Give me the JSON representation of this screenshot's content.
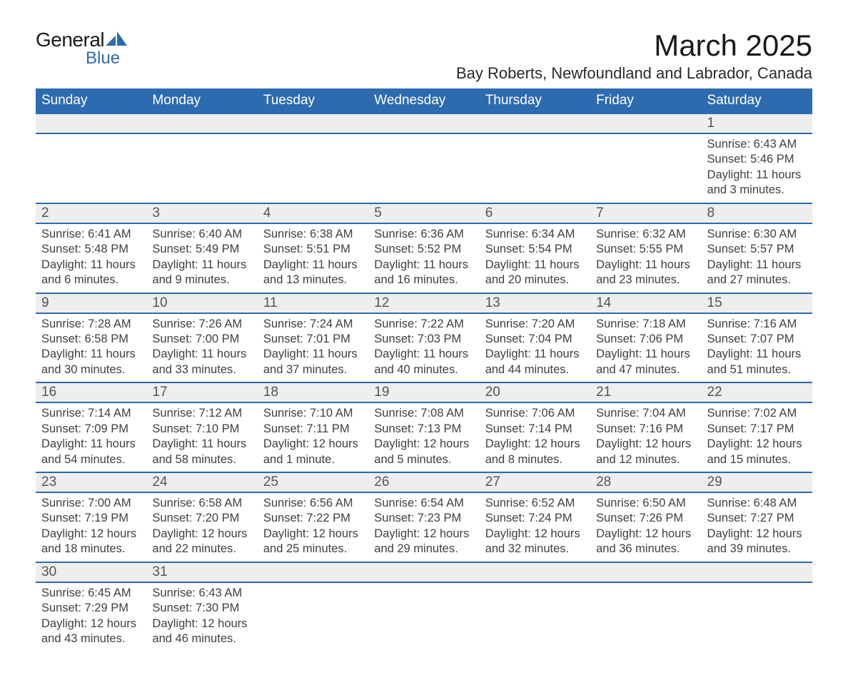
{
  "brand": {
    "name1": "General",
    "name2": "Blue",
    "accent": "#2d6bb0"
  },
  "title": "March 2025",
  "location": "Bay Roberts, Newfoundland and Labrador, Canada",
  "dayHeaders": [
    "Sunday",
    "Monday",
    "Tuesday",
    "Wednesday",
    "Thursday",
    "Friday",
    "Saturday"
  ],
  "colors": {
    "headerBg": "#2d6bb0",
    "headerText": "#ffffff",
    "dayNumBg": "#eeeeee",
    "text": "#404040",
    "pageBg": "#ffffff"
  },
  "fonts": {
    "title_pt": 42,
    "location_pt": 22,
    "header_pt": 19,
    "daynum_pt": 19,
    "body_pt": 16.5
  },
  "weeks": [
    [
      null,
      null,
      null,
      null,
      null,
      null,
      {
        "n": "1",
        "sr": "Sunrise: 6:43 AM",
        "ss": "Sunset: 5:46 PM",
        "d1": "Daylight: 11 hours",
        "d2": "and 3 minutes."
      }
    ],
    [
      {
        "n": "2",
        "sr": "Sunrise: 6:41 AM",
        "ss": "Sunset: 5:48 PM",
        "d1": "Daylight: 11 hours",
        "d2": "and 6 minutes."
      },
      {
        "n": "3",
        "sr": "Sunrise: 6:40 AM",
        "ss": "Sunset: 5:49 PM",
        "d1": "Daylight: 11 hours",
        "d2": "and 9 minutes."
      },
      {
        "n": "4",
        "sr": "Sunrise: 6:38 AM",
        "ss": "Sunset: 5:51 PM",
        "d1": "Daylight: 11 hours",
        "d2": "and 13 minutes."
      },
      {
        "n": "5",
        "sr": "Sunrise: 6:36 AM",
        "ss": "Sunset: 5:52 PM",
        "d1": "Daylight: 11 hours",
        "d2": "and 16 minutes."
      },
      {
        "n": "6",
        "sr": "Sunrise: 6:34 AM",
        "ss": "Sunset: 5:54 PM",
        "d1": "Daylight: 11 hours",
        "d2": "and 20 minutes."
      },
      {
        "n": "7",
        "sr": "Sunrise: 6:32 AM",
        "ss": "Sunset: 5:55 PM",
        "d1": "Daylight: 11 hours",
        "d2": "and 23 minutes."
      },
      {
        "n": "8",
        "sr": "Sunrise: 6:30 AM",
        "ss": "Sunset: 5:57 PM",
        "d1": "Daylight: 11 hours",
        "d2": "and 27 minutes."
      }
    ],
    [
      {
        "n": "9",
        "sr": "Sunrise: 7:28 AM",
        "ss": "Sunset: 6:58 PM",
        "d1": "Daylight: 11 hours",
        "d2": "and 30 minutes."
      },
      {
        "n": "10",
        "sr": "Sunrise: 7:26 AM",
        "ss": "Sunset: 7:00 PM",
        "d1": "Daylight: 11 hours",
        "d2": "and 33 minutes."
      },
      {
        "n": "11",
        "sr": "Sunrise: 7:24 AM",
        "ss": "Sunset: 7:01 PM",
        "d1": "Daylight: 11 hours",
        "d2": "and 37 minutes."
      },
      {
        "n": "12",
        "sr": "Sunrise: 7:22 AM",
        "ss": "Sunset: 7:03 PM",
        "d1": "Daylight: 11 hours",
        "d2": "and 40 minutes."
      },
      {
        "n": "13",
        "sr": "Sunrise: 7:20 AM",
        "ss": "Sunset: 7:04 PM",
        "d1": "Daylight: 11 hours",
        "d2": "and 44 minutes."
      },
      {
        "n": "14",
        "sr": "Sunrise: 7:18 AM",
        "ss": "Sunset: 7:06 PM",
        "d1": "Daylight: 11 hours",
        "d2": "and 47 minutes."
      },
      {
        "n": "15",
        "sr": "Sunrise: 7:16 AM",
        "ss": "Sunset: 7:07 PM",
        "d1": "Daylight: 11 hours",
        "d2": "and 51 minutes."
      }
    ],
    [
      {
        "n": "16",
        "sr": "Sunrise: 7:14 AM",
        "ss": "Sunset: 7:09 PM",
        "d1": "Daylight: 11 hours",
        "d2": "and 54 minutes."
      },
      {
        "n": "17",
        "sr": "Sunrise: 7:12 AM",
        "ss": "Sunset: 7:10 PM",
        "d1": "Daylight: 11 hours",
        "d2": "and 58 minutes."
      },
      {
        "n": "18",
        "sr": "Sunrise: 7:10 AM",
        "ss": "Sunset: 7:11 PM",
        "d1": "Daylight: 12 hours",
        "d2": "and 1 minute."
      },
      {
        "n": "19",
        "sr": "Sunrise: 7:08 AM",
        "ss": "Sunset: 7:13 PM",
        "d1": "Daylight: 12 hours",
        "d2": "and 5 minutes."
      },
      {
        "n": "20",
        "sr": "Sunrise: 7:06 AM",
        "ss": "Sunset: 7:14 PM",
        "d1": "Daylight: 12 hours",
        "d2": "and 8 minutes."
      },
      {
        "n": "21",
        "sr": "Sunrise: 7:04 AM",
        "ss": "Sunset: 7:16 PM",
        "d1": "Daylight: 12 hours",
        "d2": "and 12 minutes."
      },
      {
        "n": "22",
        "sr": "Sunrise: 7:02 AM",
        "ss": "Sunset: 7:17 PM",
        "d1": "Daylight: 12 hours",
        "d2": "and 15 minutes."
      }
    ],
    [
      {
        "n": "23",
        "sr": "Sunrise: 7:00 AM",
        "ss": "Sunset: 7:19 PM",
        "d1": "Daylight: 12 hours",
        "d2": "and 18 minutes."
      },
      {
        "n": "24",
        "sr": "Sunrise: 6:58 AM",
        "ss": "Sunset: 7:20 PM",
        "d1": "Daylight: 12 hours",
        "d2": "and 22 minutes."
      },
      {
        "n": "25",
        "sr": "Sunrise: 6:56 AM",
        "ss": "Sunset: 7:22 PM",
        "d1": "Daylight: 12 hours",
        "d2": "and 25 minutes."
      },
      {
        "n": "26",
        "sr": "Sunrise: 6:54 AM",
        "ss": "Sunset: 7:23 PM",
        "d1": "Daylight: 12 hours",
        "d2": "and 29 minutes."
      },
      {
        "n": "27",
        "sr": "Sunrise: 6:52 AM",
        "ss": "Sunset: 7:24 PM",
        "d1": "Daylight: 12 hours",
        "d2": "and 32 minutes."
      },
      {
        "n": "28",
        "sr": "Sunrise: 6:50 AM",
        "ss": "Sunset: 7:26 PM",
        "d1": "Daylight: 12 hours",
        "d2": "and 36 minutes."
      },
      {
        "n": "29",
        "sr": "Sunrise: 6:48 AM",
        "ss": "Sunset: 7:27 PM",
        "d1": "Daylight: 12 hours",
        "d2": "and 39 minutes."
      }
    ],
    [
      {
        "n": "30",
        "sr": "Sunrise: 6:45 AM",
        "ss": "Sunset: 7:29 PM",
        "d1": "Daylight: 12 hours",
        "d2": "and 43 minutes."
      },
      {
        "n": "31",
        "sr": "Sunrise: 6:43 AM",
        "ss": "Sunset: 7:30 PM",
        "d1": "Daylight: 12 hours",
        "d2": "and 46 minutes."
      },
      null,
      null,
      null,
      null,
      null
    ]
  ]
}
